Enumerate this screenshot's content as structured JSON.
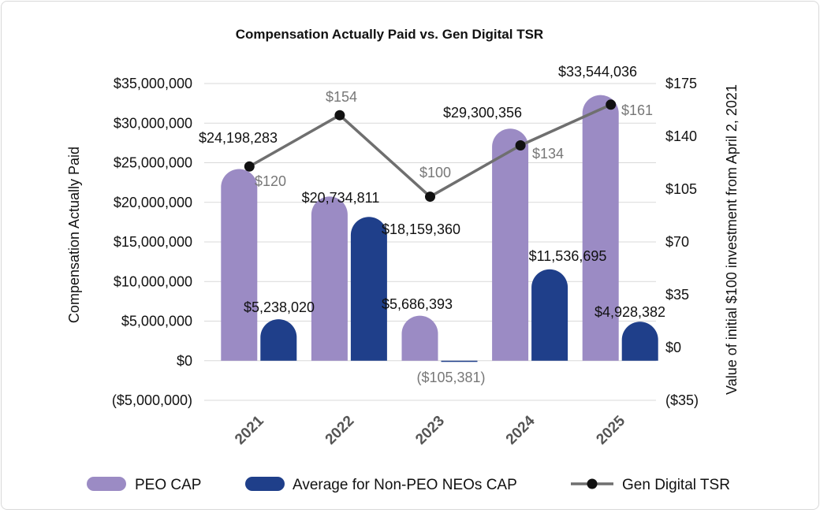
{
  "chart_data": {
    "type": "bar",
    "title": "Compensation Actually Paid vs. Gen Digital TSR",
    "categories": [
      "2021",
      "2022",
      "2023",
      "2024",
      "2025"
    ],
    "series": [
      {
        "name": "PEO CAP",
        "axis": "left",
        "color": "#9b8bc4",
        "values": [
          24198283,
          20734811,
          5686393,
          29300356,
          33544036
        ],
        "labels": [
          "$24,198,283",
          "$20,734,811",
          "$5,686,393",
          "$29,300,356",
          "$33,544,036"
        ]
      },
      {
        "name": "Average for Non-PEO NEOs CAP",
        "axis": "left",
        "color": "#1f3f8a",
        "values": [
          5238020,
          18159360,
          -105381,
          11536695,
          4928382
        ],
        "labels": [
          "$5,238,020",
          "$18,159,360",
          "($105,381)",
          "$11,536,695",
          "$4,928,382"
        ]
      },
      {
        "name": "Gen Digital TSR",
        "type": "line",
        "axis": "right",
        "color": "#6f6f6f",
        "values": [
          120,
          154,
          100,
          134,
          161
        ],
        "labels": [
          "$120",
          "$154",
          "$100",
          "$134",
          "$161"
        ]
      }
    ],
    "ylabel": "Compensation Actually Paid",
    "y2label": "Value of initial $100 investment from April 2, 2021",
    "ylim": [
      -5000000,
      35000000
    ],
    "y2lim": [
      -35,
      175
    ],
    "yticks": [
      "($5,000,000)",
      "$0",
      "$5,000,000",
      "$10,000,000",
      "$15,000,000",
      "$20,000,000",
      "$25,000,000",
      "$30,000,000",
      "$35,000,000"
    ],
    "y2ticks": [
      "($35)",
      "$0",
      "$35",
      "$70",
      "$105",
      "$140",
      "$175"
    ],
    "grid": true,
    "legend": "bottom"
  }
}
